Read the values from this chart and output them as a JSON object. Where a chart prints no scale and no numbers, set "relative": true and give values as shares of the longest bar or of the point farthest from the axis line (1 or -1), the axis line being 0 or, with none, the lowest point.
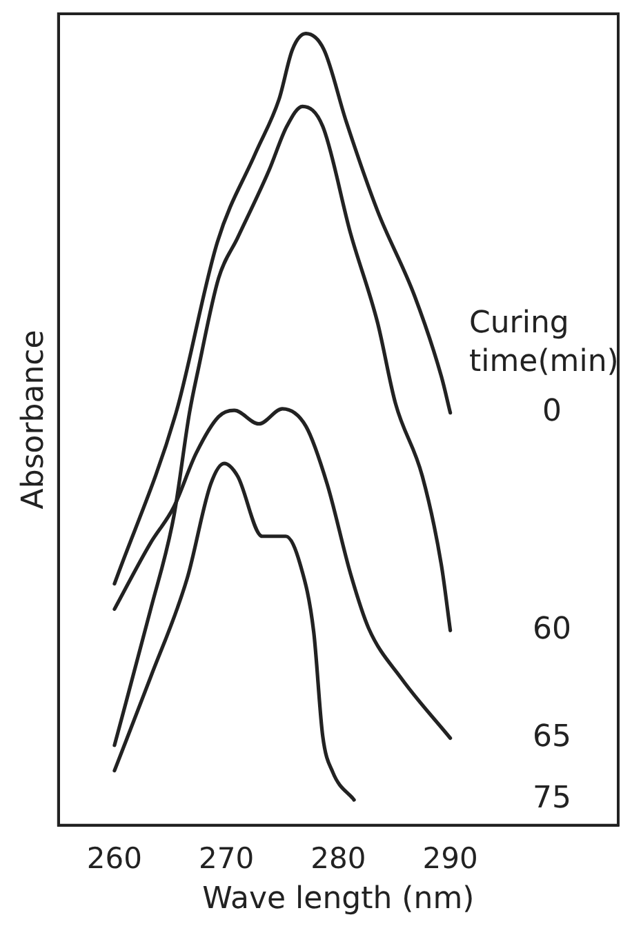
{
  "chart_data": {
    "type": "line",
    "relative": true,
    "xlabel": "Wave length (nm)",
    "ylabel": "Absorbance",
    "legend_title": "Curing time(min)",
    "xlim": [
      255,
      305
    ],
    "xticks": [
      260,
      270,
      280,
      290
    ],
    "grid": false,
    "marker": "none",
    "series": [
      {
        "name": "0",
        "color": "#222222",
        "x": [
          260,
          265.5,
          269.2,
          272.6,
          274.7,
          275.9,
          277.1,
          278.7,
          280.7,
          283.5,
          286.8,
          289.2,
          290
        ],
        "values": [
          0.305,
          0.521,
          0.737,
          0.849,
          0.917,
          0.98,
          1.0,
          0.98,
          0.889,
          0.776,
          0.669,
          0.567,
          0.521
        ]
      },
      {
        "name": "60",
        "color": "#222222",
        "x": [
          260,
          263.2,
          265.3,
          266.7,
          267.5,
          269.3,
          271,
          273.8,
          275.4,
          276.8,
          278.6,
          281.1,
          283.5,
          285.1,
          287.5,
          289.2,
          290
        ],
        "values": [
          0.101,
          0.271,
          0.39,
          0.521,
          0.577,
          0.691,
          0.742,
          0.827,
          0.883,
          0.908,
          0.883,
          0.747,
          0.635,
          0.533,
          0.441,
          0.329,
          0.246
        ]
      },
      {
        "name": "65",
        "color": "#222222",
        "x": [
          260,
          263.2,
          265.3,
          267.3,
          269.3,
          270.7,
          272.9,
          275,
          277.1,
          279,
          281.1,
          282.7,
          285.6,
          290
        ],
        "values": [
          0.273,
          0.356,
          0.402,
          0.47,
          0.516,
          0.524,
          0.507,
          0.526,
          0.504,
          0.431,
          0.317,
          0.249,
          0.186,
          0.11
        ]
      },
      {
        "name": "75",
        "color": "#222222",
        "x": [
          260,
          263.2,
          266.5,
          268.6,
          269.8,
          271,
          273.2,
          275.3,
          276.6,
          277.8,
          278.6,
          279.5,
          281.4
        ],
        "values": [
          0.069,
          0.186,
          0.312,
          0.431,
          0.457,
          0.441,
          0.365,
          0.365,
          0.329,
          0.244,
          0.113,
          0.067,
          0.032
        ]
      }
    ]
  }
}
